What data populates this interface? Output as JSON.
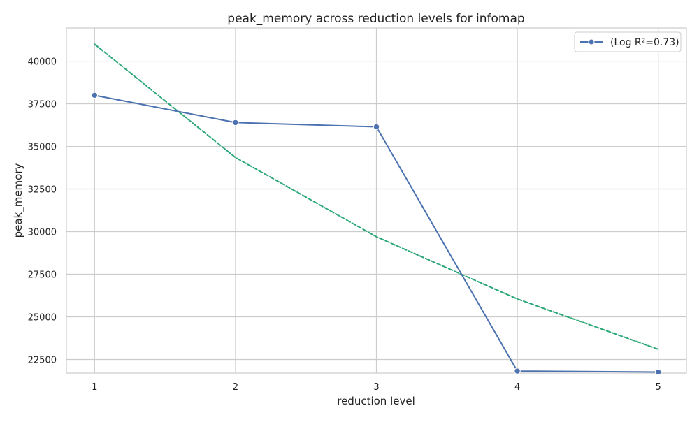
{
  "chart_data": {
    "type": "line",
    "title": "peak_memory across reduction levels for infomap",
    "xlabel": "reduction level",
    "ylabel": "peak_memory",
    "x": [
      1,
      2,
      3,
      4,
      5
    ],
    "xlim": [
      0.8,
      5.2
    ],
    "ylim": [
      21700,
      41950
    ],
    "yticks": [
      22500,
      25000,
      27500,
      30000,
      32500,
      35000,
      37500,
      40000
    ],
    "xticks": [
      1,
      2,
      3,
      4,
      5
    ],
    "grid": true,
    "legend_position": "top-right",
    "series": [
      {
        "name": "(Log R²=0.73)",
        "values": [
          38000,
          36400,
          36150,
          21820,
          21760
        ],
        "color": "#4c72b0",
        "style": "solid",
        "marker": "circle"
      },
      {
        "values": [
          41000,
          34350,
          29700,
          26050,
          23100
        ],
        "color": "#2ca878",
        "style": "dashed",
        "marker": "none"
      }
    ]
  }
}
